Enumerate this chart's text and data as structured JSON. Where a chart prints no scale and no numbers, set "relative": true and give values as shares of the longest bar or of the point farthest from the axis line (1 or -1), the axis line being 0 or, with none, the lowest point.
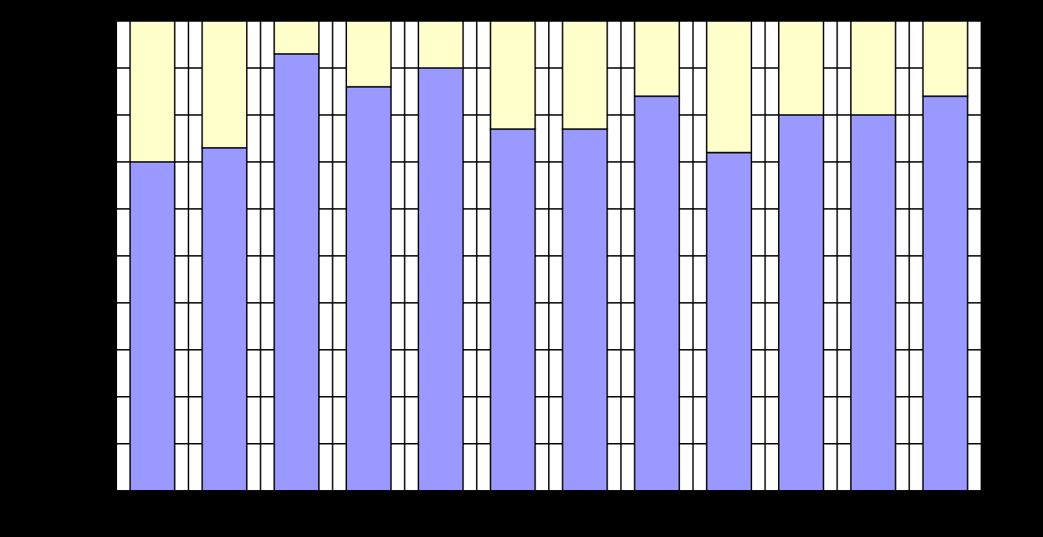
{
  "chart_data": {
    "type": "bar",
    "stacked": true,
    "relative": true,
    "grid": true,
    "categories": [
      null,
      null,
      null,
      null,
      null,
      null,
      null,
      null,
      null,
      null,
      null,
      null
    ],
    "series": [
      {
        "color": "#9999ff",
        "values": [
          0.7,
          0.73,
          0.93,
          0.86,
          0.9,
          0.77,
          0.77,
          0.84,
          0.72,
          0.8,
          0.8,
          0.84
        ]
      },
      {
        "color": "#ffffcc",
        "values": [
          0.3,
          0.27,
          0.07,
          0.14,
          0.1,
          0.23,
          0.23,
          0.16,
          0.28,
          0.2,
          0.2,
          0.16
        ]
      }
    ]
  }
}
